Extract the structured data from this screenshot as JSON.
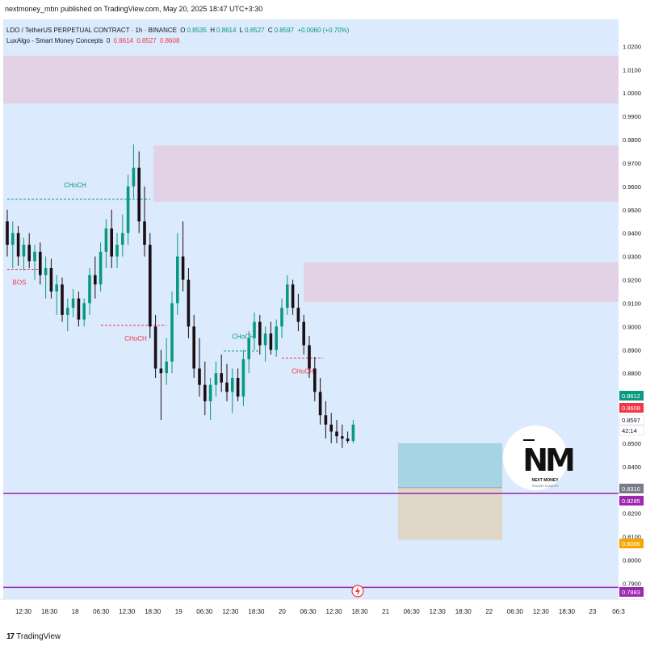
{
  "header": {
    "publisher_line": "nextmoney_mbn published on TradingView.com, May 20, 2025 18:47 UTC+3:30"
  },
  "legend": {
    "symbol_line": "LDO / TetherUS PERPETUAL CONTRACT · 1h · BINANCE",
    "ohlc": {
      "open_label": "O",
      "open": "0.8535",
      "high_label": "H",
      "high": "0.8614",
      "low_label": "L",
      "low": "0.8527",
      "close_label": "C",
      "close": "0.8597",
      "change": "+0.0060 (+0.70%)"
    },
    "indicator_name": "LuxAlgo - Smart Money Concepts",
    "indicator_param": "0",
    "indicator_values": [
      "0.8614",
      "0.8527",
      "0.8608"
    ]
  },
  "colors": {
    "background": "#ffffff",
    "plot_bg": "#dbeafc",
    "up_candle": "#089981",
    "down_candle": "#1a0f14",
    "supply_zone": "#e3d2e6",
    "bullish_label": "#089981",
    "bearish_label": "#f23645",
    "purple_line": "#9c27b0",
    "tp_box": "#a5d4e3",
    "sl_box": "#e0d6c8",
    "axis_text": "#131722"
  },
  "chart_data": {
    "type": "candlestick",
    "symbol": "LDO / TetherUS PERPETUAL CONTRACT",
    "timeframe": "1h",
    "exchange": "BINANCE",
    "y_axis": {
      "ticks": [
        "1.0200",
        "1.0100",
        "1.0000",
        "0.9900",
        "0.9800",
        "0.9700",
        "0.9600",
        "0.9500",
        "0.9400",
        "0.9300",
        "0.9200",
        "0.9100",
        "0.9000",
        "0.8900",
        "0.8800",
        "0.8700",
        "0.8600",
        "0.8500",
        "0.8400",
        "0.8300",
        "0.8200",
        "0.8100",
        "0.8000",
        "0.7900"
      ],
      "range": [
        0.786,
        1.026
      ]
    },
    "x_axis": {
      "ticks": [
        "12:30",
        "18:30",
        "18",
        "06:30",
        "12:30",
        "18:30",
        "19",
        "06:30",
        "12:30",
        "18:30",
        "20",
        "06:30",
        "12:30",
        "18:30",
        "21",
        "06:30",
        "12:30",
        "18:30",
        "22",
        "06:30",
        "12:30",
        "18:30",
        "23",
        "06:3"
      ]
    },
    "price_labels": [
      {
        "value": "0.8612",
        "role": "high",
        "color": "#089981"
      },
      {
        "value": "0.8608",
        "role": "indicator",
        "color": "#f23645"
      },
      {
        "value": "0.8597",
        "role": "last",
        "color": "#ffffff"
      },
      {
        "value": "42:14",
        "role": "countdown",
        "color": "#ffffff"
      },
      {
        "value": "0.8310",
        "role": "tp-sl-boundary",
        "color": "#787b86"
      },
      {
        "value": "0.8285",
        "role": "purple-level",
        "color": "#9c27b0"
      },
      {
        "value": "0.8086",
        "role": "stop-loss",
        "color": "#f7a600"
      },
      {
        "value": "0.7883",
        "role": "purple-level",
        "color": "#9c27b0"
      }
    ],
    "levels": [
      0.8285,
      0.7883
    ],
    "zones": [
      {
        "name": "supply-zone-1",
        "top": 1.016,
        "bottom": 0.9955
      },
      {
        "name": "supply-zone-2",
        "top": 0.9775,
        "bottom": 0.9535
      },
      {
        "name": "supply-zone-3",
        "top": 0.9275,
        "bottom": 0.9105
      }
    ],
    "position": {
      "entry": 0.831,
      "target": 0.85,
      "stop": 0.8086
    },
    "structure_labels": [
      {
        "text": "CHoCH",
        "kind": "bullish",
        "price": 0.9545
      },
      {
        "text": "BOS",
        "kind": "bearish",
        "price": 0.9245
      },
      {
        "text": "CHoCH",
        "kind": "bearish",
        "price": 0.9005
      },
      {
        "text": "CHoCH",
        "kind": "bullish",
        "price": 0.8895
      },
      {
        "text": "CHoCH",
        "kind": "bearish",
        "price": 0.8865
      }
    ],
    "candles": [
      [
        0.945,
        0.95,
        0.93,
        0.935
      ],
      [
        0.935,
        0.945,
        0.925,
        0.94
      ],
      [
        0.94,
        0.943,
        0.926,
        0.93
      ],
      [
        0.93,
        0.938,
        0.924,
        0.935
      ],
      [
        0.935,
        0.94,
        0.925,
        0.928
      ],
      [
        0.928,
        0.935,
        0.92,
        0.932
      ],
      [
        0.932,
        0.936,
        0.918,
        0.922
      ],
      [
        0.922,
        0.93,
        0.912,
        0.925
      ],
      [
        0.925,
        0.929,
        0.912,
        0.915
      ],
      [
        0.915,
        0.922,
        0.905,
        0.918
      ],
      [
        0.918,
        0.921,
        0.902,
        0.905
      ],
      [
        0.905,
        0.912,
        0.898,
        0.908
      ],
      [
        0.908,
        0.916,
        0.904,
        0.912
      ],
      [
        0.912,
        0.915,
        0.9,
        0.903
      ],
      [
        0.903,
        0.912,
        0.9,
        0.91
      ],
      [
        0.91,
        0.925,
        0.905,
        0.922
      ],
      [
        0.922,
        0.93,
        0.912,
        0.918
      ],
      [
        0.918,
        0.936,
        0.915,
        0.932
      ],
      [
        0.932,
        0.946,
        0.925,
        0.942
      ],
      [
        0.942,
        0.95,
        0.925,
        0.93
      ],
      [
        0.93,
        0.94,
        0.925,
        0.935
      ],
      [
        0.935,
        0.948,
        0.93,
        0.94
      ],
      [
        0.94,
        0.965,
        0.935,
        0.96
      ],
      [
        0.96,
        0.978,
        0.955,
        0.968
      ],
      [
        0.968,
        0.975,
        0.94,
        0.945
      ],
      [
        0.945,
        0.96,
        0.93,
        0.935
      ],
      [
        0.935,
        0.94,
        0.895,
        0.9
      ],
      [
        0.9,
        0.905,
        0.878,
        0.882
      ],
      [
        0.882,
        0.89,
        0.86,
        0.88
      ],
      [
        0.88,
        0.895,
        0.875,
        0.885
      ],
      [
        0.885,
        0.915,
        0.88,
        0.91
      ],
      [
        0.91,
        0.94,
        0.905,
        0.93
      ],
      [
        0.93,
        0.945,
        0.915,
        0.92
      ],
      [
        0.92,
        0.925,
        0.895,
        0.9
      ],
      [
        0.9,
        0.905,
        0.878,
        0.882
      ],
      [
        0.882,
        0.895,
        0.87,
        0.875
      ],
      [
        0.875,
        0.885,
        0.862,
        0.868
      ],
      [
        0.868,
        0.878,
        0.86,
        0.875
      ],
      [
        0.875,
        0.885,
        0.87,
        0.88
      ],
      [
        0.88,
        0.888,
        0.872,
        0.876
      ],
      [
        0.876,
        0.884,
        0.868,
        0.872
      ],
      [
        0.872,
        0.882,
        0.863,
        0.878
      ],
      [
        0.878,
        0.882,
        0.868,
        0.87
      ],
      [
        0.87,
        0.89,
        0.866,
        0.886
      ],
      [
        0.886,
        0.898,
        0.88,
        0.895
      ],
      [
        0.895,
        0.906,
        0.89,
        0.902
      ],
      [
        0.902,
        0.905,
        0.888,
        0.892
      ],
      [
        0.892,
        0.9,
        0.885,
        0.897
      ],
      [
        0.897,
        0.902,
        0.888,
        0.89
      ],
      [
        0.89,
        0.903,
        0.887,
        0.9
      ],
      [
        0.9,
        0.912,
        0.895,
        0.908
      ],
      [
        0.908,
        0.922,
        0.905,
        0.918
      ],
      [
        0.918,
        0.92,
        0.905,
        0.908
      ],
      [
        0.908,
        0.914,
        0.898,
        0.902
      ],
      [
        0.902,
        0.905,
        0.888,
        0.892
      ],
      [
        0.892,
        0.896,
        0.878,
        0.882
      ],
      [
        0.882,
        0.887,
        0.868,
        0.872
      ],
      [
        0.872,
        0.878,
        0.858,
        0.862
      ],
      [
        0.862,
        0.868,
        0.852,
        0.858
      ],
      [
        0.858,
        0.863,
        0.85,
        0.855
      ],
      [
        0.855,
        0.86,
        0.85,
        0.853
      ],
      [
        0.853,
        0.858,
        0.848,
        0.852
      ],
      [
        0.852,
        0.855,
        0.85,
        0.851
      ],
      [
        0.851,
        0.86,
        0.85,
        0.858
      ]
    ]
  },
  "watermark": {
    "logo_text": "NM",
    "name": "NEXT MONEY",
    "tagline": "TRADING ACADEMY"
  },
  "footer": {
    "brand_mark": "17",
    "brand": "TradingView"
  }
}
